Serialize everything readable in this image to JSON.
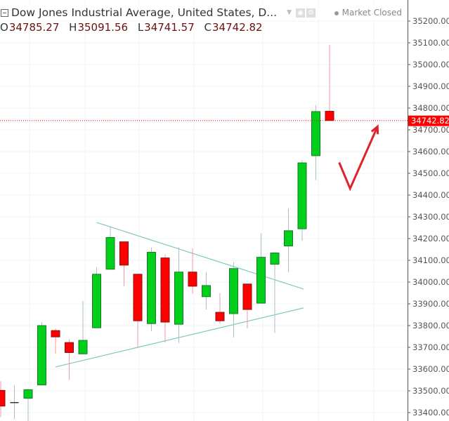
{
  "header": {
    "title": "Dow Jones Industrial Average, United States, D...",
    "status": "Market Closed",
    "icons": [
      "collapse-icon",
      "dropdown-caret-icon",
      "eye-icon",
      "gear-icon"
    ],
    "ohlc": {
      "o_label": "O",
      "o": "34785.27",
      "h_label": "H",
      "h": "35091.56",
      "l_label": "L",
      "l": "34741.57",
      "c_label": "C",
      "c": "34742.82"
    }
  },
  "chart_data": {
    "type": "candlestick",
    "ylim": [
      33350,
      35260
    ],
    "y_ticks": [
      "35200.00",
      "35100.00",
      "35000.00",
      "34900.00",
      "34800.00",
      "34700.00",
      "34600.00",
      "34500.00",
      "34400.00",
      "34300.00",
      "34200.00",
      "34100.00",
      "34000.00",
      "33900.00",
      "33800.00",
      "33700.00",
      "33600.00",
      "33500.00",
      "33400.00"
    ],
    "last_price": "34742.82",
    "colors": {
      "up": "#00d01b",
      "down": "#ff0000",
      "trendline": "#7fc8c0",
      "arrow": "#e0232a",
      "last_price": "#ff0000"
    },
    "candles": [
      {
        "o": 33502,
        "h": 33544,
        "l": 33380,
        "c": 33430
      },
      {
        "o": 33446,
        "h": 33524,
        "l": 33370,
        "c": 33446
      },
      {
        "o": 33466,
        "h": 33510,
        "l": 33360,
        "c": 33505
      },
      {
        "o": 33527,
        "h": 33816,
        "l": 33527,
        "c": 33800
      },
      {
        "o": 33777,
        "h": 33787,
        "l": 33670,
        "c": 33748
      },
      {
        "o": 33722,
        "h": 33738,
        "l": 33550,
        "c": 33676
      },
      {
        "o": 33670,
        "h": 33913,
        "l": 33670,
        "c": 33732
      },
      {
        "o": 33790,
        "h": 34069,
        "l": 33790,
        "c": 34036
      },
      {
        "o": 34059,
        "h": 34257,
        "l": 34059,
        "c": 34205
      },
      {
        "o": 34185,
        "h": 34185,
        "l": 33981,
        "c": 34078
      },
      {
        "o": 34036,
        "h": 34036,
        "l": 33696,
        "c": 33822
      },
      {
        "o": 33809,
        "h": 34159,
        "l": 33774,
        "c": 34137
      },
      {
        "o": 34111,
        "h": 34127,
        "l": 33722,
        "c": 33816
      },
      {
        "o": 33806,
        "h": 34159,
        "l": 33719,
        "c": 34046
      },
      {
        "o": 34046,
        "h": 34156,
        "l": 33946,
        "c": 33981
      },
      {
        "o": 33933,
        "h": 34046,
        "l": 33874,
        "c": 33984
      },
      {
        "o": 33861,
        "h": 33949,
        "l": 33809,
        "c": 33822
      },
      {
        "o": 33855,
        "h": 34091,
        "l": 33745,
        "c": 34062
      },
      {
        "o": 33991,
        "h": 33991,
        "l": 33787,
        "c": 33874
      },
      {
        "o": 33903,
        "h": 34224,
        "l": 33903,
        "c": 34114
      },
      {
        "o": 34082,
        "h": 34134,
        "l": 33767,
        "c": 34134
      },
      {
        "o": 34166,
        "h": 34339,
        "l": 34046,
        "c": 34236
      },
      {
        "o": 34245,
        "h": 34561,
        "l": 34190,
        "c": 34548
      },
      {
        "o": 34581,
        "h": 34813,
        "l": 34468,
        "c": 34784
      },
      {
        "o": 34785.27,
        "h": 35091.56,
        "l": 34741.57,
        "c": 34742.82
      }
    ],
    "trendlines": [
      {
        "from": {
          "bar": 7,
          "price": 34274
        },
        "to": {
          "bar": 22.1,
          "price": 33968
        }
      },
      {
        "from": {
          "bar": 4,
          "price": 33610
        },
        "to": {
          "bar": 22.1,
          "price": 33881
        }
      }
    ],
    "annotation": {
      "type": "check-arrow",
      "points": [
        {
          "bar": 24.7,
          "price": 34550
        },
        {
          "bar": 25.5,
          "price": 34430
        },
        {
          "bar": 27.5,
          "price": 34715
        }
      ]
    },
    "grid": true
  }
}
